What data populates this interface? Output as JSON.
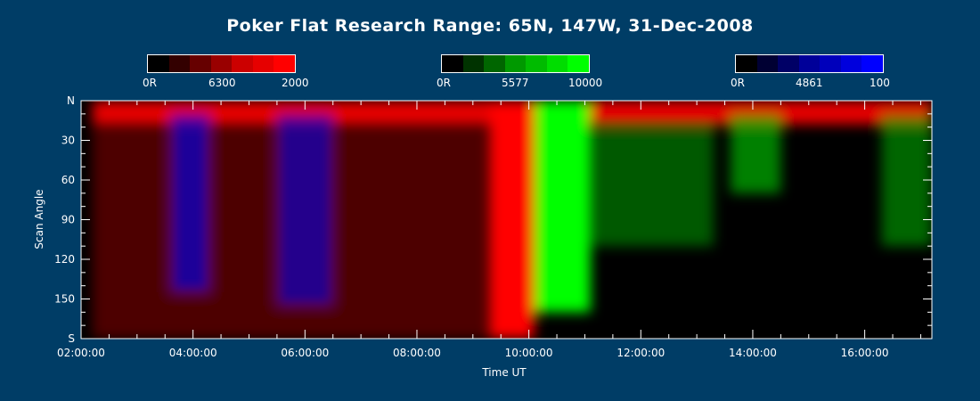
{
  "chart_data": {
    "type": "heatmap",
    "title": "Poker Flat Research Range: 65N, 147W, 31-Dec-2008",
    "xlabel": "Time UT",
    "ylabel": "Scan Angle",
    "xlim": [
      2.0,
      17.2
    ],
    "ylim": [
      0,
      180
    ],
    "x_ticks": [
      "02:00:00",
      "04:00:00",
      "06:00:00",
      "08:00:00",
      "10:00:00",
      "12:00:00",
      "14:00:00",
      "16:00:00"
    ],
    "y_ticks": [
      "N",
      "30",
      "60",
      "90",
      "120",
      "150",
      "S"
    ],
    "y_tick_values": [
      0,
      30,
      60,
      90,
      120,
      150,
      180
    ],
    "colorbars": [
      {
        "wavelength": "6300",
        "min_label": "0R",
        "max_label": "2000",
        "color": "#ff0000",
        "steps": [
          "#000000",
          "#330000",
          "#660000",
          "#990000",
          "#cc0000",
          "#e60000",
          "#ff0000"
        ]
      },
      {
        "wavelength": "5577",
        "min_label": "0R",
        "max_label": "10000",
        "color": "#00ff00",
        "steps": [
          "#000000",
          "#003300",
          "#006600",
          "#009900",
          "#00bb00",
          "#00dd00",
          "#00ff00"
        ]
      },
      {
        "wavelength": "4861",
        "min_label": "0R",
        "max_label": "100",
        "color": "#0000ff",
        "steps": [
          "#000000",
          "#000033",
          "#000066",
          "#000099",
          "#0000bb",
          "#0000dd",
          "#0000ff"
        ]
      }
    ],
    "features": [
      {
        "channel": "red",
        "t_start": 2.2,
        "t_end": 17.2,
        "angle_start": 0,
        "angle_end": 18,
        "level": 0.9
      },
      {
        "channel": "red",
        "t_start": 2.2,
        "t_end": 9.3,
        "angle_start": 18,
        "angle_end": 180,
        "level": 0.3
      },
      {
        "channel": "blue",
        "t_start": 3.6,
        "t_end": 4.3,
        "angle_start": 10,
        "angle_end": 145,
        "level": 0.6
      },
      {
        "channel": "blue",
        "t_start": 5.5,
        "t_end": 6.5,
        "angle_start": 10,
        "angle_end": 155,
        "level": 0.55
      },
      {
        "channel": "red",
        "t_start": 9.3,
        "t_end": 10.1,
        "angle_start": 0,
        "angle_end": 180,
        "level": 1.0
      },
      {
        "channel": "green",
        "t_start": 10.1,
        "t_end": 11.1,
        "angle_start": 0,
        "angle_end": 160,
        "level": 1.0
      },
      {
        "channel": "green",
        "t_start": 11.1,
        "t_end": 13.3,
        "angle_start": 20,
        "angle_end": 110,
        "level": 0.35
      },
      {
        "channel": "green",
        "t_start": 13.6,
        "t_end": 14.5,
        "angle_start": 10,
        "angle_end": 70,
        "level": 0.5
      },
      {
        "channel": "green",
        "t_start": 16.3,
        "t_end": 17.2,
        "angle_start": 10,
        "angle_end": 110,
        "level": 0.4
      }
    ]
  }
}
